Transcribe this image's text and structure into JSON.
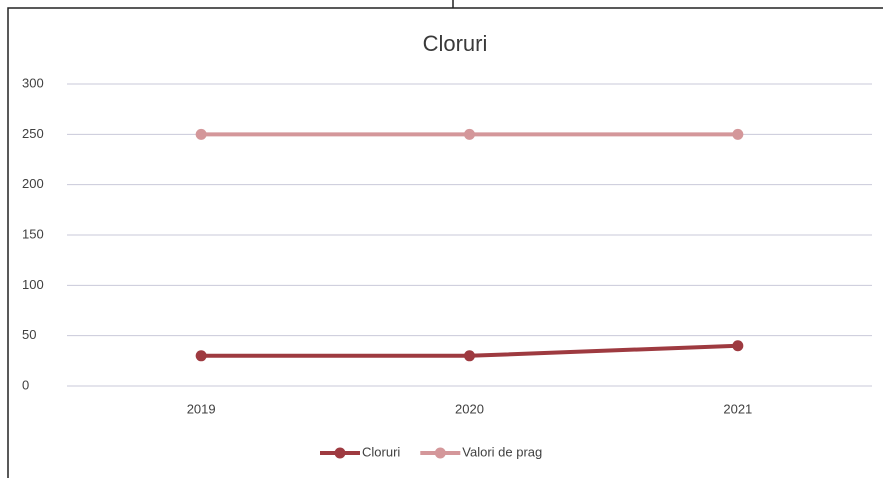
{
  "chart_data": {
    "type": "line",
    "title": "Cloruri",
    "categories": [
      "2019",
      "2020",
      "2021"
    ],
    "series": [
      {
        "name": "Cloruri",
        "color": "#9e3a40",
        "values": [
          30,
          30,
          40
        ]
      },
      {
        "name": "Valori de prag",
        "color": "#d4979a",
        "values": [
          250,
          250,
          250
        ]
      }
    ],
    "ylim": [
      0,
      300
    ],
    "yticks": [
      0,
      50,
      100,
      150,
      200,
      250,
      300
    ],
    "grid": true,
    "legend": "bottom"
  }
}
